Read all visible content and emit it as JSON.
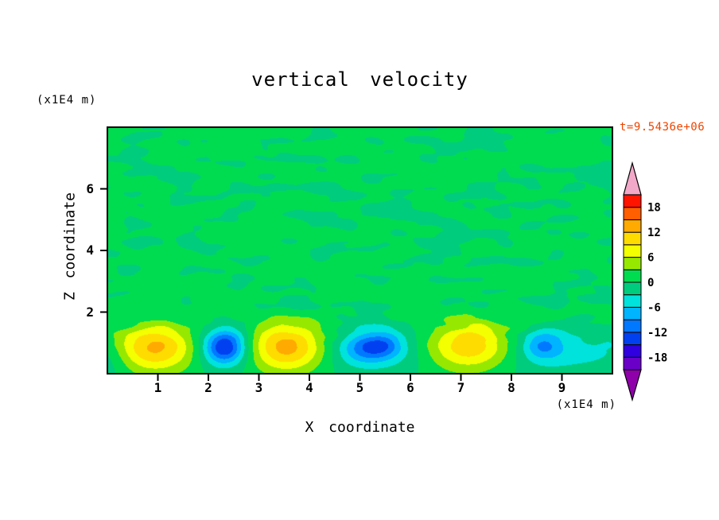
{
  "title": "vertical velocity",
  "time_label": "t=9.5436e+06",
  "axes": {
    "x": {
      "label": "X coordinate",
      "unit_label": "(x1E4 m)",
      "min": 0,
      "max": 10,
      "ticks": [
        1,
        2,
        3,
        4,
        5,
        6,
        7,
        8,
        9
      ]
    },
    "z": {
      "label": "Z coordinate",
      "unit_label": "(x1E4 m)",
      "min": 0,
      "max": 8,
      "ticks": [
        2,
        4,
        6
      ]
    }
  },
  "colors": {
    "background": "#FFFFFF",
    "frame": "#000000",
    "text": "#000000",
    "time_label": "#EE4400"
  },
  "colorbar": {
    "min": -21,
    "max": 21,
    "step": 3,
    "labels": [
      18,
      12,
      6,
      0,
      -6,
      -12,
      -18
    ],
    "band_colors_low_to_high": [
      "#6A00C8",
      "#3000E0",
      "#0040F0",
      "#0078FF",
      "#00B4FF",
      "#00E2DC",
      "#00CC7E",
      "#00DC50",
      "#96E800",
      "#F4FF00",
      "#FFDC00",
      "#FFAA00",
      "#FF5F00",
      "#FF1400"
    ],
    "under_arrow_color": "#9000AA",
    "over_arrow_color": "#F2A8C8"
  },
  "chart_data": {
    "type": "contour",
    "title": "vertical velocity",
    "xlabel": "X coordinate",
    "ylabel": "Z coordinate",
    "x_unit": "x1E4 m",
    "z_unit": "x1E4 m",
    "time": "t=9.5436e+06",
    "x_range": [
      0,
      10
    ],
    "z_range": [
      0,
      8
    ],
    "contour_interval": 3,
    "level_min": -21,
    "level_max": 21,
    "labeled_levels": [
      18,
      12,
      6,
      0,
      -6,
      -12,
      -18
    ],
    "background_noise": {
      "bias": 0.45,
      "amplitude": 2.35,
      "suppress_below_z": 0.75,
      "ramp": 0.85
    },
    "blobs": [
      {
        "x": 0.95,
        "z": 0.85,
        "amp": 12.5,
        "sx": 0.6,
        "sz": 0.55
      },
      {
        "x": 2.32,
        "z": 0.88,
        "amp": -14.0,
        "sx": 0.28,
        "sz": 0.38
      },
      {
        "x": 2.32,
        "z": 0.78,
        "amp": -3.6,
        "sx": 0.6,
        "sz": 0.55
      },
      {
        "x": 3.55,
        "z": 0.85,
        "amp": 14.0,
        "sx": 0.55,
        "sz": 0.55
      },
      {
        "x": 5.12,
        "z": 0.84,
        "amp": -7.5,
        "sx": 0.34,
        "sz": 0.34
      },
      {
        "x": 5.5,
        "z": 0.95,
        "amp": -6.0,
        "sx": 0.28,
        "sz": 0.3
      },
      {
        "x": 5.3,
        "z": 0.72,
        "amp": -4.2,
        "sx": 1.0,
        "sz": 0.55
      },
      {
        "x": 7.15,
        "z": 0.88,
        "amp": 12.5,
        "sx": 0.62,
        "sz": 0.55
      },
      {
        "x": 8.62,
        "z": 0.92,
        "amp": -7.5,
        "sx": 0.28,
        "sz": 0.32
      },
      {
        "x": 9.1,
        "z": 0.7,
        "amp": -4.2,
        "sx": 1.25,
        "sz": 0.6
      },
      {
        "x": 0.0,
        "z": 0.55,
        "amp": -3.8,
        "sx": 0.35,
        "sz": 0.55
      }
    ]
  }
}
